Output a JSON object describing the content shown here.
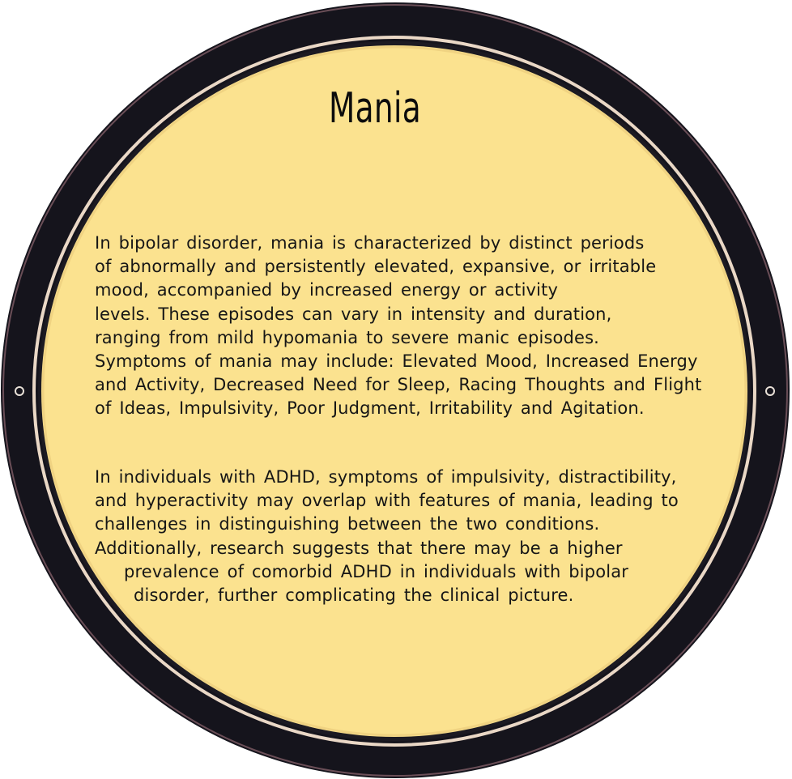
{
  "title": "Mania",
  "paragraphs": [
    {
      "lines": [
        "In bipolar disorder, mania is characterized by distinct periods",
        "of abnormally and persistently elevated, expansive, or irritable",
        "mood, accompanied by increased energy or activity",
        "levels. These episodes can vary in intensity and duration,",
        "ranging from mild hypomania to severe manic episodes.",
        "Symptoms of mania may include: Elevated Mood, Increased Energy",
        "and Activity, Decreased Need for Sleep, Racing Thoughts and Flight",
        "of Ideas, Impulsivity, Poor Judgment, Irritability and Agitation."
      ]
    },
    {
      "lines": [
        "In individuals with ADHD, symptoms of impulsivity, distractibility,",
        "and hyperactivity may overlap with features of mania, leading to",
        "challenges in distinguishing between the two conditions.",
        "Additionally, research suggests that there may be a higher",
        "prevalence of comorbid ADHD in individuals with bipolar",
        "disorder, further complicating the clinical picture."
      ]
    }
  ],
  "colors": {
    "face": "#fbe28f",
    "rim": "#15141c",
    "inner_ring": "#ead8c6",
    "background": "#ffffff"
  }
}
